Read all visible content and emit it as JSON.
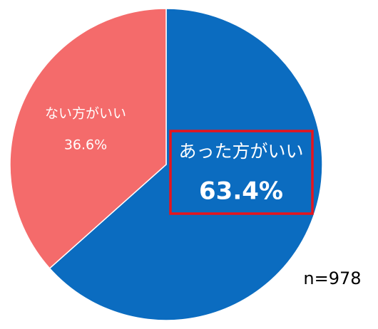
{
  "chart_data": {
    "type": "pie",
    "categories": [
      "あった方がいい",
      "ない方がいい"
    ],
    "values": [
      63.4,
      36.6
    ],
    "value_labels": [
      "63.4%",
      "36.6%"
    ],
    "colors": [
      "#0b6cc0",
      "#f46b6b"
    ],
    "annotation": "n=978"
  }
}
